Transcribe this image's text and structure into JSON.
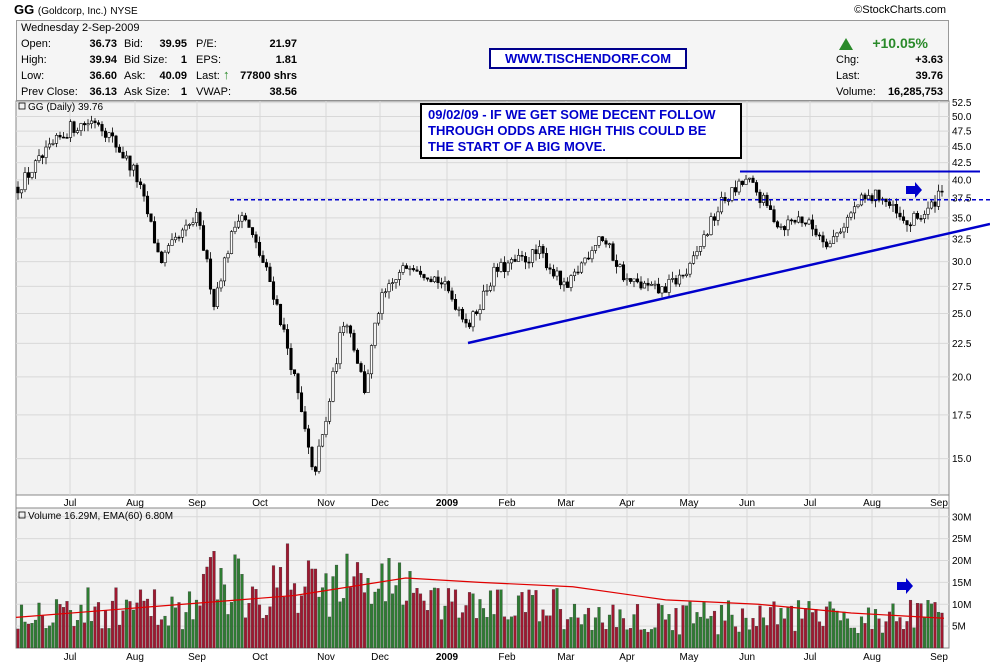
{
  "header": {
    "symbol": "GG",
    "company": "(Goldcorp, Inc.)",
    "exchange": "NYSE",
    "copyright": "©StockCharts.com"
  },
  "quote": {
    "date": "Wednesday  2-Sep-2009",
    "open_label": "Open:",
    "open": "36.73",
    "high_label": "High:",
    "high": "39.94",
    "low_label": "Low:",
    "low": "36.60",
    "prevclose_label": "Prev Close:",
    "prevclose": "36.13",
    "bid_label": "Bid:",
    "bid": "39.95",
    "bidsize_label": "Bid Size:",
    "bidsize": "1",
    "ask_label": "Ask:",
    "ask": "40.09",
    "asksize_label": "Ask Size:",
    "asksize": "1",
    "pe_label": "P/E:",
    "pe": "21.97",
    "eps_label": "EPS:",
    "eps": "1.81",
    "last_label": "Last:",
    "last_trade": "77800 shrs",
    "vwap_label": "VWAP:",
    "vwap": "38.56",
    "chg_pct": "+10.05%",
    "chg_label": "Chg:",
    "chg": "+3.63",
    "last2_label": "Last:",
    "last": "39.76",
    "volume_label": "Volume:",
    "volume": "16,285,753"
  },
  "url_banner": "WWW.TISCHENDORF.COM",
  "annotation": "09/02/09 - IF WE GET SOME DECENT FOLLOW THROUGH ODDS ARE HIGH THIS COULD BE THE START OF A BIG MOVE.",
  "colors": {
    "up": "#2e7d32",
    "down": "#a01830",
    "trendline": "#0000cc",
    "ema": "#e00000",
    "panel_bg": "#f2f2f2",
    "grid": "#d8d8d8"
  },
  "chart_data": [
    {
      "type": "candlestick",
      "legend": "GG (Daily) 39.76",
      "y_ticks": [
        15.0,
        17.5,
        20.0,
        22.5,
        25.0,
        27.5,
        30.0,
        32.5,
        35.0,
        37.5,
        40.0,
        42.5,
        45.0,
        47.5,
        50.0,
        52.5
      ],
      "y_tick_labels": [
        "15.0",
        "17.5",
        "20.0",
        "22.5",
        "25.0",
        "27.5",
        "30.0",
        "32.5",
        "35.0",
        "37.5",
        "40.0",
        "42.5",
        "45.0",
        "47.5",
        "50.0",
        "52.5"
      ],
      "ylim": [
        13.2,
        52.8
      ],
      "y_scale": "log",
      "x_labels": [
        "Jul",
        "Aug",
        "Sep",
        "Oct",
        "Nov",
        "Dec",
        "2009",
        "Feb",
        "Mar",
        "Apr",
        "May",
        "Jun",
        "Jul",
        "Aug",
        "Sep"
      ],
      "x_label_bold": [
        false,
        false,
        false,
        false,
        false,
        false,
        true,
        false,
        false,
        false,
        false,
        false,
        false,
        false,
        false
      ],
      "trend_path": [
        [
          "Jun",
          39
        ],
        [
          "Jul",
          48
        ],
        [
          "Aug",
          41
        ],
        [
          "Sep",
          35
        ],
        [
          "Oct",
          33
        ],
        [
          "Oct mid",
          22
        ],
        [
          "Nov",
          16
        ],
        [
          "Nov mid",
          19
        ],
        [
          "Dec",
          26
        ],
        [
          "2009",
          30
        ],
        [
          "Jan mid",
          25
        ],
        [
          "Feb",
          29
        ],
        [
          "Mar",
          30
        ],
        [
          "Mar mid",
          27
        ],
        [
          "Apr",
          33
        ],
        [
          "Apr mid",
          28
        ],
        [
          "May",
          30
        ],
        [
          "Jun",
          40
        ],
        [
          "Jul",
          34
        ],
        [
          "Jul mid",
          33
        ],
        [
          "Aug",
          37
        ],
        [
          "Aug mid",
          37
        ],
        [
          "Sep",
          39.76
        ]
      ],
      "resistance_level": 37.3,
      "upper_line_level": 41.2
    },
    {
      "type": "bar",
      "legend": "Volume 16.29M, EMA(60) 6.80M",
      "y_ticks": [
        5,
        10,
        15,
        20,
        25,
        30
      ],
      "y_tick_labels": [
        "5M",
        "10M",
        "15M",
        "20M",
        "25M",
        "30M"
      ],
      "ylim": [
        0,
        32
      ],
      "x_labels": [
        "Jul",
        "Aug",
        "Sep",
        "Oct",
        "Nov",
        "Dec",
        "2009",
        "Feb",
        "Mar",
        "Apr",
        "May",
        "Jun",
        "Jul",
        "Aug",
        "Sep"
      ],
      "x_label_bold": [
        false,
        false,
        false,
        false,
        false,
        false,
        true,
        false,
        false,
        false,
        false,
        false,
        false,
        false,
        false
      ],
      "last_volume": 16.29,
      "ema_path": [
        [
          0,
          7
        ],
        [
          0.3,
          12
        ],
        [
          0.42,
          16
        ],
        [
          0.5,
          15
        ],
        [
          0.6,
          14
        ],
        [
          0.7,
          11
        ],
        [
          0.8,
          10
        ],
        [
          0.9,
          8
        ],
        [
          1.0,
          6.8
        ]
      ]
    }
  ]
}
